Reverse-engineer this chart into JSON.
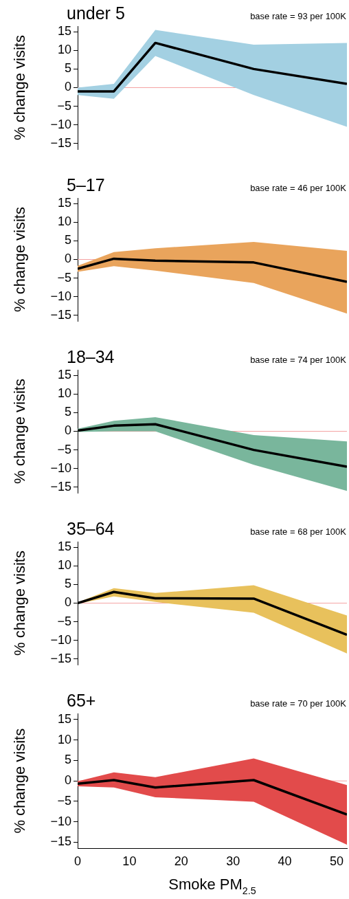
{
  "chart_data": [
    {
      "type": "line",
      "title": "under 5",
      "annotations": [
        "base rate = 93 per 100K"
      ],
      "ylabel": "% change visits",
      "x": [
        0,
        7,
        15,
        34,
        52
      ],
      "xlim": [
        0,
        52
      ],
      "ylim": [
        -16.5,
        16.5
      ],
      "yticks": [
        -15,
        -10,
        -5,
        0,
        5,
        10,
        15
      ],
      "tick_labels": "y",
      "grid": false,
      "legend": false,
      "marker": "none",
      "ref_lines": [
        {
          "axis": "y",
          "value": 0,
          "color": "#f4a3a3"
        }
      ],
      "series": [
        {
          "color": "#000000",
          "colors": [
            "#a3d0e2",
            "#a3d0e2",
            "#a3d0e2",
            "#a3d0e2",
            "#a3d0e2"
          ],
          "values": [
            -1,
            -1,
            12,
            5,
            1
          ],
          "lower": [
            -2,
            -3,
            8.5,
            -2,
            -10.5
          ],
          "upper": [
            0,
            1,
            15.5,
            11.5,
            12
          ]
        }
      ]
    },
    {
      "type": "line",
      "title": "5–17",
      "annotations": [
        "base rate = 46 per 100K"
      ],
      "ylabel": "% change visits",
      "x": [
        0,
        7,
        15,
        34,
        52
      ],
      "xlim": [
        0,
        52
      ],
      "ylim": [
        -16.5,
        16.5
      ],
      "yticks": [
        -15,
        -10,
        -5,
        0,
        5,
        10,
        15
      ],
      "tick_labels": "y",
      "grid": false,
      "legend": false,
      "marker": "none",
      "ref_lines": [
        {
          "axis": "y",
          "value": 0,
          "color": "#f4a3a3"
        }
      ],
      "series": [
        {
          "color": "#000000",
          "colors": [
            "#e9a45c",
            "#e9a45c",
            "#e9a45c",
            "#e9a45c",
            "#e9a45c"
          ],
          "values": [
            -2.5,
            0.2,
            -0.3,
            -0.8,
            -6
          ],
          "lower": [
            -3.3,
            -1.8,
            -3,
            -6.3,
            -14.5
          ],
          "upper": [
            -1.7,
            2,
            3,
            4.7,
            2.3
          ]
        }
      ]
    },
    {
      "type": "line",
      "title": "18–34",
      "annotations": [
        "base rate = 74 per 100K"
      ],
      "ylabel": "% change visits",
      "x": [
        0,
        7,
        15,
        34,
        52
      ],
      "xlim": [
        0,
        52
      ],
      "ylim": [
        -16.5,
        16.5
      ],
      "yticks": [
        -15,
        -10,
        -5,
        0,
        5,
        10,
        15
      ],
      "tick_labels": "y",
      "grid": false,
      "legend": false,
      "marker": "none",
      "ref_lines": [
        {
          "axis": "y",
          "value": 0,
          "color": "#f4a3a3"
        }
      ],
      "series": [
        {
          "color": "#000000",
          "colors": [
            "#79b69c",
            "#79b69c",
            "#79b69c",
            "#79b69c",
            "#79b69c"
          ],
          "values": [
            0.2,
            1.5,
            1.9,
            -5,
            -9.5
          ],
          "lower": [
            -0.2,
            0,
            0,
            -9,
            -16
          ],
          "upper": [
            0.7,
            2.8,
            3.8,
            -1,
            -2.7
          ]
        }
      ]
    },
    {
      "type": "line",
      "title": "35–64",
      "annotations": [
        "base rate = 68 per 100K"
      ],
      "ylabel": "% change visits",
      "x": [
        0,
        7,
        15,
        34,
        52
      ],
      "xlim": [
        0,
        52
      ],
      "ylim": [
        -16.5,
        16.5
      ],
      "yticks": [
        -15,
        -10,
        -5,
        0,
        5,
        10,
        15
      ],
      "tick_labels": "y",
      "grid": false,
      "legend": false,
      "marker": "none",
      "ref_lines": [
        {
          "axis": "y",
          "value": 0,
          "color": "#f4a3a3"
        }
      ],
      "series": [
        {
          "color": "#000000",
          "colors": [
            "#e8c15c",
            "#e8c15c",
            "#e8c15c",
            "#e8c15c",
            "#e8c15c"
          ],
          "values": [
            0,
            3,
            1.3,
            1.2,
            -8.5
          ],
          "lower": [
            -0.2,
            1.8,
            0.3,
            -2.6,
            -13.5
          ],
          "upper": [
            0.2,
            4,
            2.7,
            4.8,
            -3.3
          ]
        }
      ]
    },
    {
      "type": "line",
      "title": "65+",
      "annotations": [
        "base rate = 70 per 100K"
      ],
      "ylabel": "% change visits",
      "xlabel": "Smoke PM$_{2.5}$",
      "x": [
        0,
        7,
        15,
        34,
        52
      ],
      "xlim": [
        0,
        52
      ],
      "xticks": [
        0,
        10,
        20,
        30,
        40,
        50
      ],
      "ylim": [
        -16.5,
        16.5
      ],
      "yticks": [
        -15,
        -10,
        -5,
        0,
        5,
        10,
        15
      ],
      "grid": false,
      "legend": false,
      "marker": "none",
      "ref_lines": [
        {
          "axis": "y",
          "value": 0,
          "color": "#f4a3a3"
        }
      ],
      "series": [
        {
          "color": "#000000",
          "colors": [
            "#e24b4b",
            "#e24b4b",
            "#e24b4b",
            "#e24b4b",
            "#e24b4b"
          ],
          "values": [
            -0.7,
            0.2,
            -1.6,
            0.2,
            -8.2
          ],
          "lower": [
            -1.3,
            -1.6,
            -4,
            -5.1,
            -15.6
          ],
          "upper": [
            -0.1,
            2.1,
            0.9,
            5.5,
            -1
          ]
        }
      ]
    }
  ]
}
